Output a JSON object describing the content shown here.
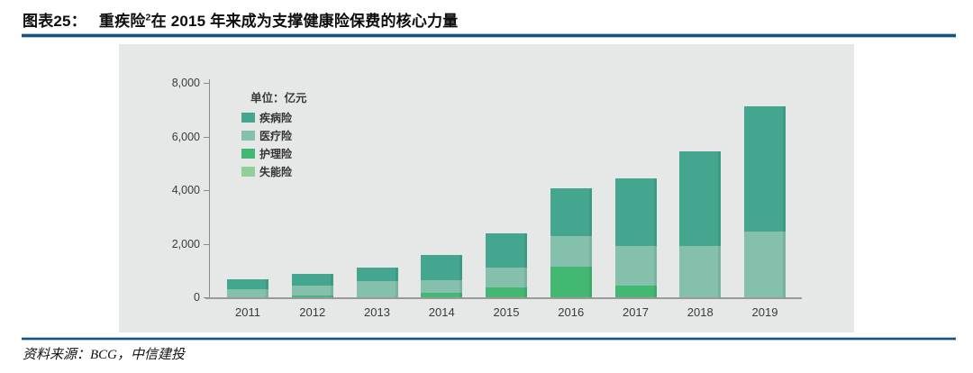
{
  "header": {
    "figure_label": "图表25：",
    "title_main": "重疾险",
    "title_footnote_sup": "2",
    "title_rest": "在 2015 年来成为支撑健康险保费的核心力量"
  },
  "footer": {
    "source_text": "资料来源：BCG，中信建投"
  },
  "chart_data": {
    "type": "bar",
    "stacked": true,
    "unit_label": "单位：亿元",
    "categories": [
      "2011",
      "2012",
      "2013",
      "2014",
      "2015",
      "2016",
      "2017",
      "2018",
      "2019"
    ],
    "series": [
      {
        "name": "疾病险",
        "color": "#44a68f",
        "values": [
          370,
          420,
          525,
          940,
          1265,
          1770,
          2520,
          3550,
          4650
        ]
      },
      {
        "name": "医疗险",
        "color": "#85c0ac",
        "values": [
          300,
          390,
          595,
          480,
          750,
          1145,
          1470,
          1905,
          2465
        ]
      },
      {
        "name": "护理险",
        "color": "#43b873",
        "values": [
          0,
          55,
          0,
          170,
          370,
          1150,
          450,
          0,
          0
        ]
      },
      {
        "name": "失能险",
        "color": "#90cf9a",
        "values": [
          0,
          0,
          0,
          0,
          0,
          0,
          0,
          0,
          0
        ]
      }
    ],
    "totals": [
      670,
      865,
      1120,
      1590,
      2385,
      4065,
      4440,
      5455,
      7115
    ],
    "ylim": [
      0,
      8000
    ],
    "yticks": [
      {
        "value": 0,
        "label": "0"
      },
      {
        "value": 2000,
        "label": "2,000"
      },
      {
        "value": 4000,
        "label": "4,000"
      },
      {
        "value": 6000,
        "label": "6,000"
      },
      {
        "value": 8000,
        "label": "8,000"
      }
    ],
    "xlabel": "",
    "ylabel": "",
    "grid": false,
    "legend_position": "inside-top-left",
    "colors": {
      "panel_bg": "#e6e7e7",
      "axis_gray": "#8a8a8a",
      "text_gray": "#3a3a3a",
      "rule_blue": "#1b4f7e",
      "rule_blue_light": "#a9c7e0"
    }
  }
}
